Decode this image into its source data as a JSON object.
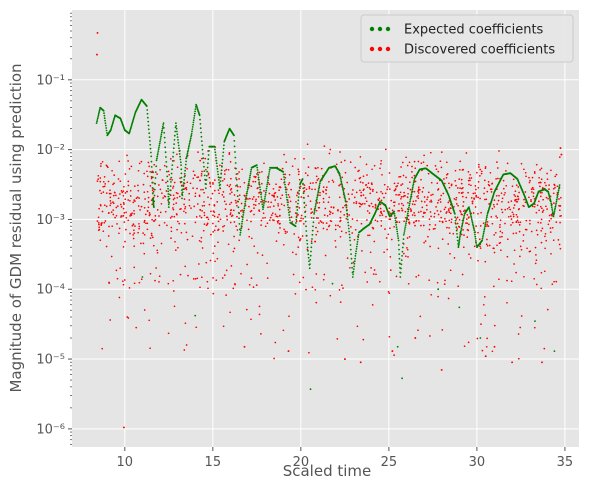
{
  "chart_data": {
    "type": "scatter",
    "title": "",
    "xlabel": "Scaled time",
    "ylabel": "Magnitude of GDM residual using prediction",
    "xlim": [
      7.0,
      35.8
    ],
    "ylim": [
      5.5e-07,
      1.0
    ],
    "yscale": "log",
    "x_ticks": [
      10,
      15,
      20,
      25,
      30,
      35
    ],
    "x_tick_labels": [
      "10",
      "15",
      "20",
      "25",
      "30",
      "35"
    ],
    "y_ticks": [
      1e-06,
      1e-05,
      0.0001,
      0.001,
      0.01,
      0.1
    ],
    "y_tick_labels": [
      "10⁻⁶",
      "10⁻⁵",
      "10⁻⁴",
      "10⁻³",
      "10⁻²",
      "10⁻¹"
    ],
    "grid": true,
    "legend_position": "top-right",
    "colors": {
      "expected": "#008000",
      "discovered": "#ff0000",
      "plot_bg": "#e5e5e5",
      "grid": "#ffffff"
    },
    "series": [
      {
        "name": "Expected coefficients",
        "key": "expected",
        "curve_points": [
          [
            8.4,
            0.024
          ],
          [
            8.6,
            0.04
          ],
          [
            8.8,
            0.036
          ],
          [
            9.0,
            0.016
          ],
          [
            9.2,
            0.019
          ],
          [
            9.45,
            0.031
          ],
          [
            9.75,
            0.028
          ],
          [
            10.0,
            0.019
          ],
          [
            10.25,
            0.017
          ],
          [
            10.6,
            0.034
          ],
          [
            10.95,
            0.052
          ],
          [
            11.25,
            0.042
          ],
          [
            11.5,
            0.008
          ],
          [
            11.6,
            0.002
          ],
          [
            11.65,
            0.0015
          ],
          [
            11.8,
            0.007
          ],
          [
            12.2,
            0.024
          ],
          [
            12.45,
            0.003
          ],
          [
            12.5,
            0.0015
          ],
          [
            12.9,
            0.024
          ],
          [
            13.2,
            0.006
          ],
          [
            13.25,
            0.002
          ],
          [
            13.5,
            0.0075
          ],
          [
            13.8,
            0.017
          ],
          [
            14.05,
            0.044
          ],
          [
            14.25,
            0.031
          ],
          [
            14.6,
            0.0028
          ],
          [
            14.8,
            0.011
          ],
          [
            15.1,
            0.011
          ],
          [
            15.4,
            0.0028
          ],
          [
            15.65,
            0.013
          ],
          [
            15.95,
            0.02
          ],
          [
            16.2,
            0.016
          ],
          [
            16.55,
            0.0006
          ],
          [
            16.85,
            0.0018
          ],
          [
            17.2,
            0.0055
          ],
          [
            17.5,
            0.006
          ],
          [
            17.85,
            0.0014
          ],
          [
            18.25,
            0.0055
          ],
          [
            18.6,
            0.0055
          ],
          [
            19.0,
            0.0048
          ],
          [
            19.4,
            0.0009
          ],
          [
            19.7,
            0.0008
          ],
          [
            19.95,
            0.0032
          ],
          [
            20.1,
            0.0038
          ],
          [
            20.35,
            0.0005
          ],
          [
            20.5,
            0.0002
          ],
          [
            20.75,
            0.0012
          ],
          [
            21.1,
            0.0035
          ],
          [
            21.6,
            0.0055
          ],
          [
            21.95,
            0.0058
          ],
          [
            22.2,
            0.0045
          ],
          [
            22.55,
            0.0018
          ],
          [
            22.8,
            0.0005
          ],
          [
            22.95,
            0.00015
          ],
          [
            23.1,
            0.0003
          ],
          [
            23.3,
            0.00065
          ],
          [
            23.6,
            0.00075
          ],
          [
            23.9,
            0.00085
          ],
          [
            24.2,
            0.0012
          ],
          [
            24.5,
            0.0018
          ],
          [
            24.8,
            0.0016
          ],
          [
            25.05,
            0.0011
          ],
          [
            25.3,
            0.0013
          ],
          [
            25.55,
            0.0005
          ],
          [
            25.65,
            0.00015
          ],
          [
            25.85,
            0.0006
          ],
          [
            26.2,
            0.0018
          ],
          [
            26.45,
            0.0038
          ],
          [
            26.75,
            0.0052
          ],
          [
            27.1,
            0.0054
          ],
          [
            27.5,
            0.0045
          ],
          [
            28.0,
            0.0036
          ],
          [
            28.4,
            0.0022
          ],
          [
            28.75,
            0.0012
          ],
          [
            28.95,
            0.0004
          ],
          [
            29.05,
            0.0006
          ],
          [
            29.3,
            0.0012
          ],
          [
            29.55,
            0.0015
          ],
          [
            29.85,
            0.0007
          ],
          [
            30.0,
            0.0004
          ],
          [
            30.3,
            0.0005
          ],
          [
            30.6,
            0.0012
          ],
          [
            31.0,
            0.0025
          ],
          [
            31.5,
            0.0044
          ],
          [
            31.9,
            0.0046
          ],
          [
            32.3,
            0.0038
          ],
          [
            32.7,
            0.0022
          ],
          [
            32.95,
            0.0015
          ],
          [
            33.25,
            0.0017
          ],
          [
            33.5,
            0.0025
          ],
          [
            33.85,
            0.0027
          ],
          [
            34.05,
            0.0025
          ],
          [
            34.2,
            0.0018
          ],
          [
            34.35,
            0.0011
          ],
          [
            34.5,
            0.0017
          ],
          [
            34.7,
            0.0031
          ]
        ],
        "outliers": [
          [
            14.0,
            4.2e-05
          ],
          [
            20.55,
            3.7e-06
          ],
          [
            25.5,
            1.5e-05
          ],
          [
            25.75,
            5.3e-06
          ],
          [
            29.0,
            5.5e-05
          ],
          [
            30.2,
            2e-05
          ],
          [
            33.3,
            3.5e-05
          ],
          [
            34.4,
            1.3e-05
          ],
          [
            11.0,
            0.00015
          ],
          [
            21.8,
            0.00012
          ],
          [
            27.8,
            0.0001
          ]
        ]
      },
      {
        "name": "Discovered coefficients",
        "key": "discovered",
        "x_range": [
          8.4,
          34.8
        ],
        "typical_range": [
          0.0001,
          0.007
        ],
        "count": 1700,
        "outliers": [
          [
            8.45,
            0.47
          ],
          [
            8.42,
            0.23
          ],
          [
            9.95,
            1.05e-06
          ],
          [
            34.75,
            0.0105
          ],
          [
            34.8,
            0.0085
          ],
          [
            16.8,
            1.5e-05
          ],
          [
            22.5,
            1e-05
          ],
          [
            23.4,
            9e-06
          ],
          [
            25.2,
            1.3e-05
          ],
          [
            28.0,
            7e-06
          ],
          [
            32.0,
            9e-06
          ],
          [
            33.7,
            9e-06
          ],
          [
            19.3,
            1.3e-05
          ],
          [
            26.5,
            2e-05
          ],
          [
            31.0,
            1.5e-05
          ],
          [
            30.5,
            1.1e-05
          ]
        ]
      }
    ]
  }
}
